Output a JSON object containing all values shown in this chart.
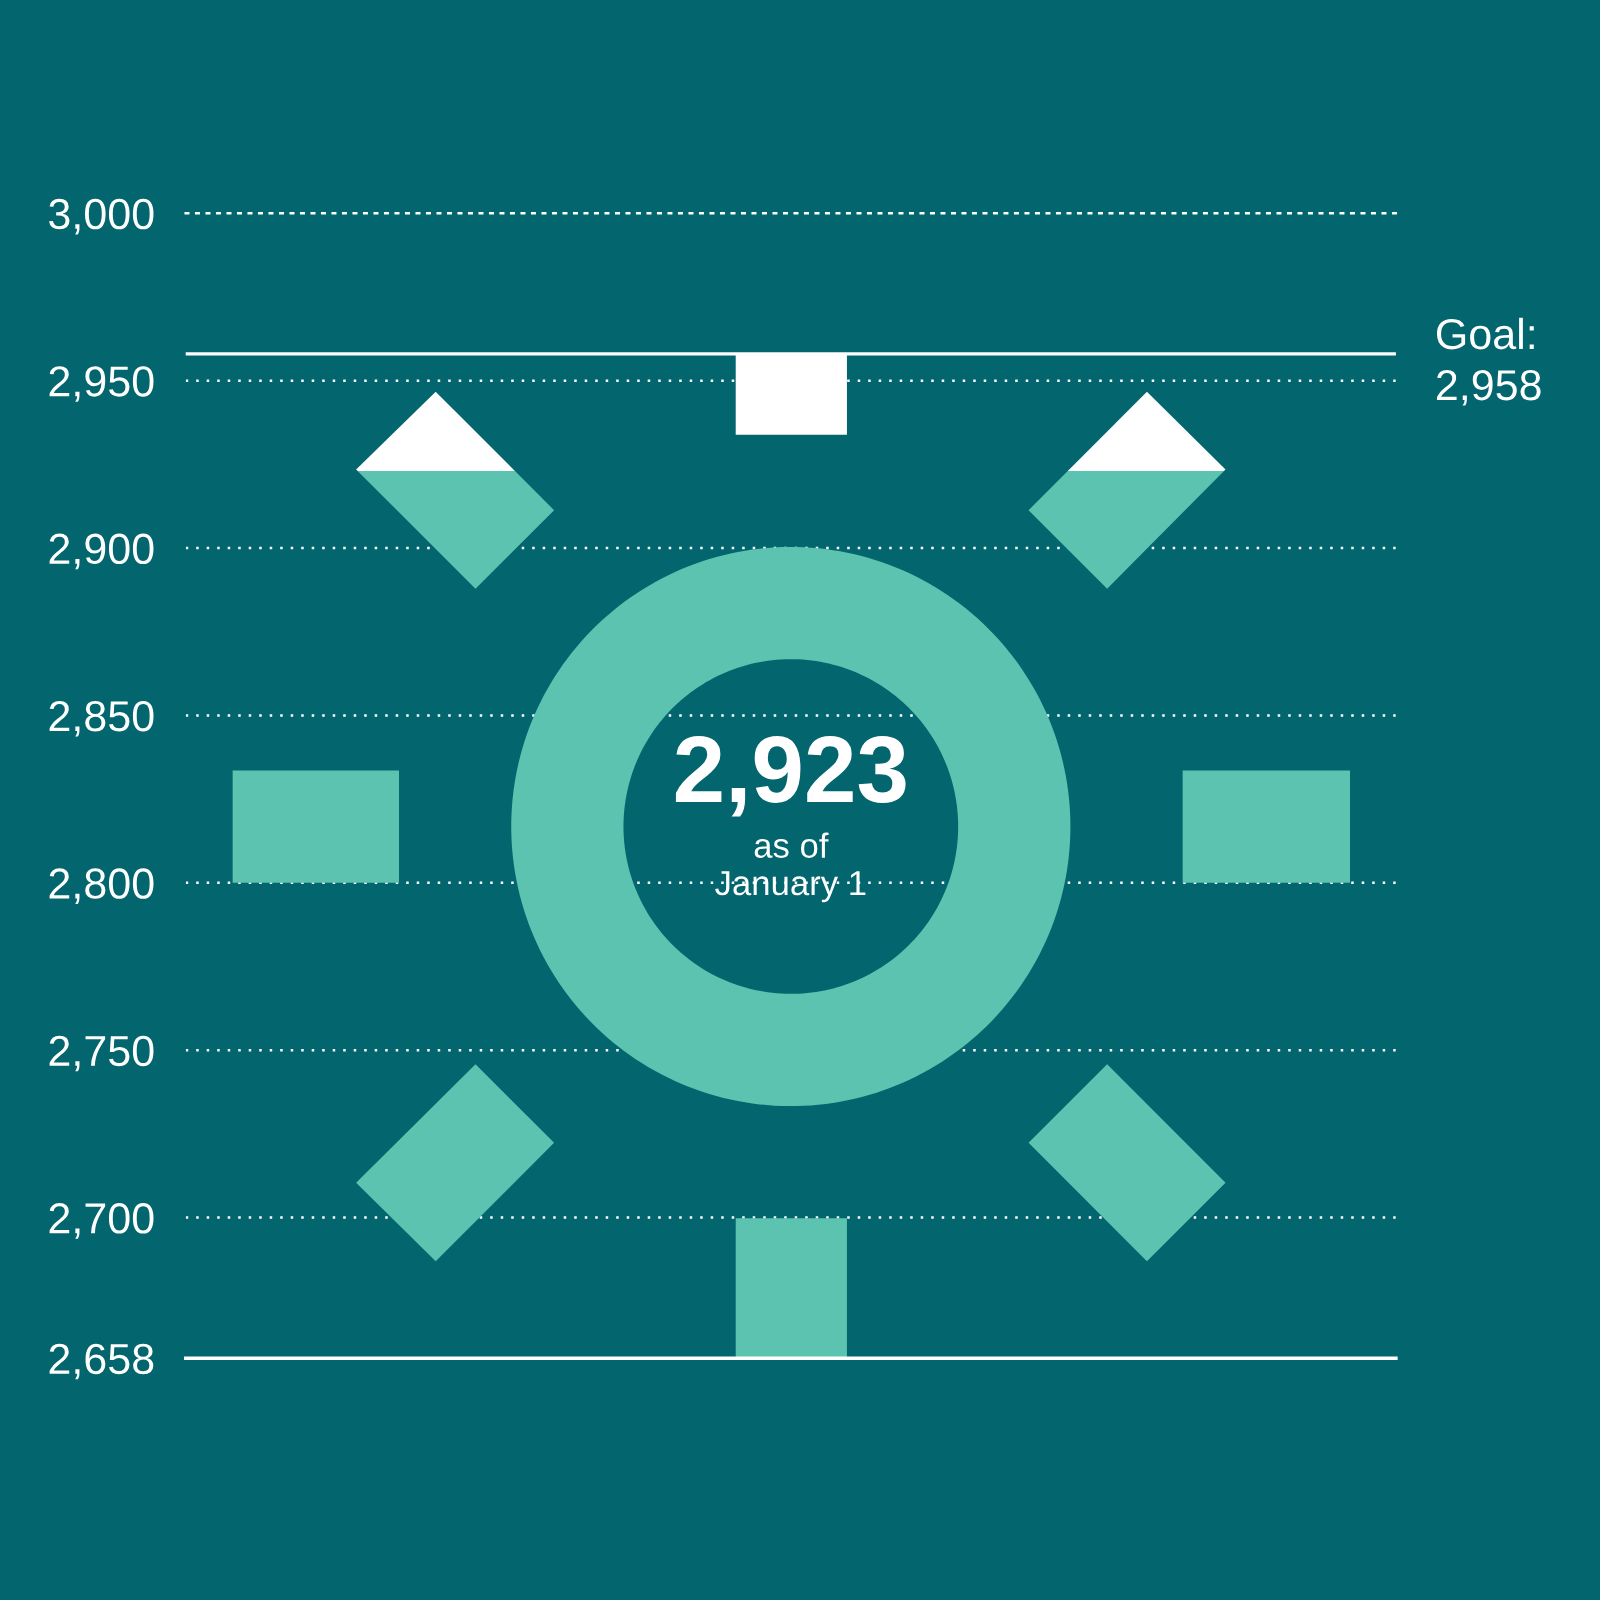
{
  "chart_data": {
    "type": "bar",
    "categories": [
      null
    ],
    "values": [
      2923
    ],
    "value_labels": [
      "2,923"
    ],
    "colors": [
      "#5cc3b1"
    ],
    "annotations": [
      "as of\nJanuary 1"
    ],
    "ref_lines": [
      {
        "axis": "y",
        "value": 2958,
        "label": "Goal:\n2,958",
        "color": "#ffffff",
        "line_style": "solid"
      }
    ],
    "ylim": [
      2658,
      3000
    ],
    "yticks": [
      {
        "value": 2658,
        "label": "2,658"
      },
      {
        "value": 2700,
        "label": "2,700"
      },
      {
        "value": 2750,
        "label": "2,750"
      },
      {
        "value": 2800,
        "label": "2,800"
      },
      {
        "value": 2850,
        "label": "2,850"
      },
      {
        "value": 2900,
        "label": "2,900"
      },
      {
        "value": 2950,
        "label": "2,950"
      },
      {
        "value": 3000,
        "label": "3,000"
      }
    ],
    "grid": "y",
    "tick_labels": "y"
  }
}
